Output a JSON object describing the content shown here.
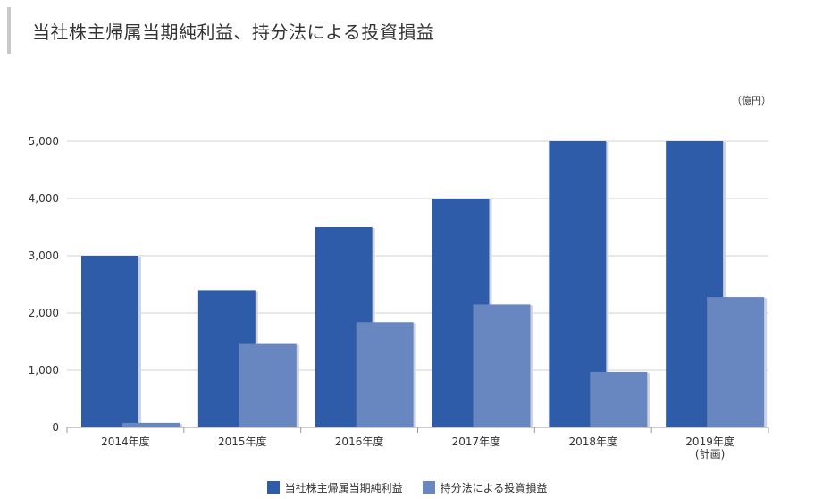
{
  "title": "当社株主帰属当期純利益、持分法による投資損益",
  "unit_label": "（億円）",
  "chart_data": {
    "type": "bar",
    "categories": [
      "2014年度",
      "2015年度",
      "2016年度",
      "2017年度",
      "2018年度",
      "2019年度\n(計画)"
    ],
    "series": [
      {
        "name": "当社株主帰属当期純利益",
        "color": "#2f5ca8",
        "values": [
          3000,
          2400,
          3500,
          4000,
          5000,
          5000
        ]
      },
      {
        "name": "持分法による投資損益",
        "color": "#6886c0",
        "values": [
          80,
          1460,
          1840,
          2150,
          970,
          2280
        ]
      }
    ],
    "ylim": [
      0,
      5000
    ],
    "yticks": [
      0,
      1000,
      2000,
      3000,
      4000,
      5000
    ],
    "ytick_labels": [
      "0",
      "1,000",
      "2,000",
      "3,000",
      "4,000",
      "5,000"
    ],
    "grid": true,
    "legend_position": "bottom-center",
    "xlabel": "",
    "ylabel": ""
  }
}
